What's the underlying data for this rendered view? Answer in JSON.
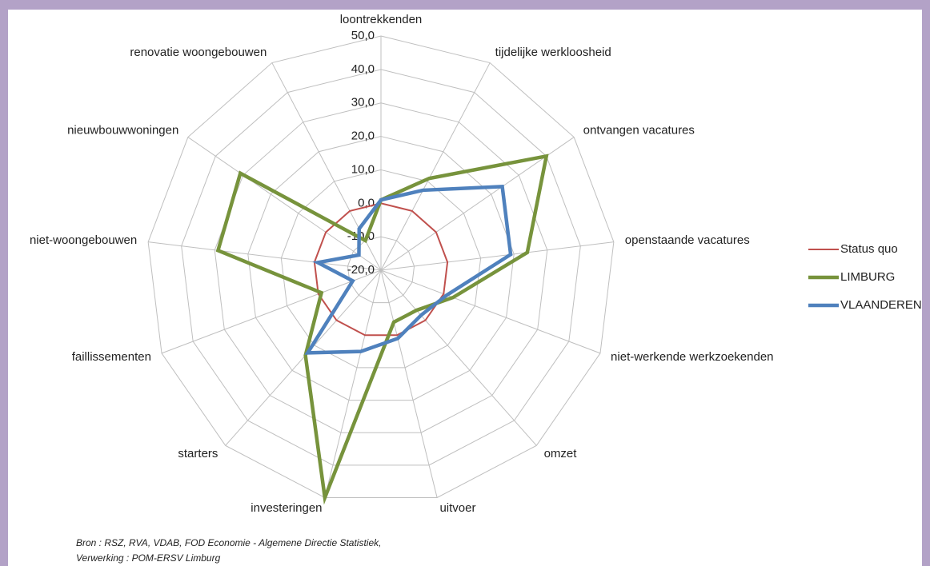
{
  "chart_data": {
    "type": "radar",
    "categories": [
      "loontrekkenden",
      "tijdelijke werkloosheid",
      "ontvangen vacatures",
      "openstaande vacatures",
      "niet-werkende werkzoekenden",
      "omzet",
      "uitvoer",
      "investeringen",
      "starters",
      "faillissementen",
      "niet-woongebouwen",
      "nieuwbouwwoningen",
      "renovatie woongebouwen"
    ],
    "series": [
      {
        "name": "Status quo",
        "color": "#c0504d",
        "width": 2,
        "values": [
          0,
          0,
          0,
          0,
          0,
          0,
          0,
          0,
          0,
          0,
          0,
          0,
          0
        ]
      },
      {
        "name": "LIMBURG",
        "color": "#77933c",
        "width": 4.5,
        "values": [
          1,
          11,
          40,
          24,
          3,
          -4,
          -4,
          50,
          14,
          -1,
          29,
          31,
          -10
        ]
      },
      {
        "name": "VLAANDEREN",
        "color": "#4f81bd",
        "width": 4.5,
        "values": [
          1,
          7,
          24,
          19,
          1,
          -2,
          1,
          5,
          13,
          -11,
          -1,
          -12,
          -6
        ]
      }
    ],
    "rlim": [
      -20,
      50
    ],
    "rticks": [
      {
        "value": -20,
        "label": "-20,0"
      },
      {
        "value": -10,
        "label": "-10,0"
      },
      {
        "value": 0,
        "label": "0,0"
      },
      {
        "value": 10,
        "label": "10,0"
      },
      {
        "value": 20,
        "label": "20,0"
      },
      {
        "value": 30,
        "label": "30,0"
      },
      {
        "value": 40,
        "label": "40,0"
      },
      {
        "value": 50,
        "label": "50,0"
      }
    ],
    "grid": true,
    "legend": "right",
    "source": [
      "Bron : RSZ, RVA, VDAB, FOD Economie - Algemene Directie Statistiek,",
      "Verwerking : POM-ERSV Limburg"
    ]
  }
}
